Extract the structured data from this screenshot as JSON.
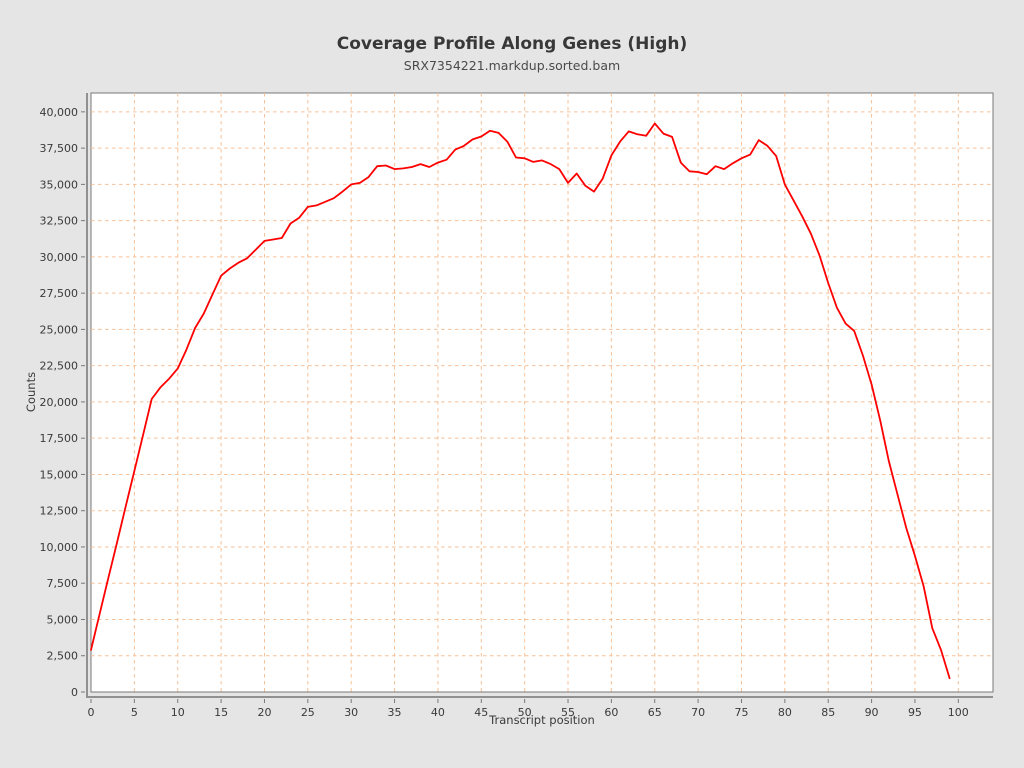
{
  "title": "Coverage Profile Along Genes (High)",
  "subtitle": "SRX7354221.markdup.sorted.bam",
  "chart_data": {
    "type": "line",
    "title": "Coverage Profile Along Genes (High)",
    "subtitle": "SRX7354221.markdup.sorted.bam",
    "xlabel": "Transcript position",
    "ylabel": "Counts",
    "xlim": [
      0,
      104
    ],
    "ylim": [
      0,
      41300
    ],
    "x_ticks": [
      0,
      5,
      10,
      15,
      20,
      25,
      30,
      35,
      40,
      45,
      50,
      55,
      60,
      65,
      70,
      75,
      80,
      85,
      90,
      95,
      100
    ],
    "y_ticks": [
      0,
      2500,
      5000,
      7500,
      10000,
      12500,
      15000,
      17500,
      20000,
      22500,
      25000,
      27500,
      30000,
      32500,
      35000,
      37500,
      40000
    ],
    "grid": true,
    "legend": "none",
    "series": [
      {
        "name": "SRX7354221.markdup.sorted.bam",
        "x": [
          0,
          1,
          2,
          3,
          4,
          5,
          6,
          7,
          8,
          9,
          10,
          11,
          12,
          13,
          14,
          15,
          16,
          17,
          18,
          19,
          20,
          21,
          22,
          23,
          24,
          25,
          26,
          27,
          28,
          29,
          30,
          31,
          32,
          33,
          34,
          35,
          36,
          37,
          38,
          39,
          40,
          41,
          42,
          43,
          44,
          45,
          46,
          47,
          48,
          49,
          50,
          51,
          52,
          53,
          54,
          55,
          56,
          57,
          58,
          59,
          60,
          61,
          62,
          63,
          64,
          65,
          66,
          67,
          68,
          69,
          70,
          71,
          72,
          73,
          74,
          75,
          76,
          77,
          78,
          79,
          80,
          81,
          82,
          83,
          84,
          85,
          86,
          87,
          88,
          89,
          90,
          91,
          92,
          93,
          94,
          95,
          96,
          97,
          98,
          99
        ],
        "values": [
          2900,
          5400,
          7850,
          10300,
          12800,
          15250,
          17700,
          20200,
          21000,
          21600,
          22300,
          23600,
          25100,
          26100,
          27400,
          28700,
          29200,
          29600,
          29900,
          30500,
          31100,
          31200,
          31300,
          32300,
          32700,
          33450,
          33550,
          33800,
          34050,
          34500,
          35000,
          35100,
          35500,
          36250,
          36300,
          36050,
          36100,
          36200,
          36400,
          36200,
          36500,
          36700,
          37400,
          37650,
          38100,
          38300,
          38700,
          38550,
          37950,
          36850,
          36800,
          36550,
          36650,
          36400,
          36050,
          35100,
          35750,
          34900,
          34500,
          35400,
          37000,
          37950,
          38650,
          38450,
          38350,
          39200,
          38500,
          38270,
          36500,
          35900,
          35850,
          35700,
          36250,
          36050,
          36450,
          36800,
          37050,
          38050,
          37650,
          36950,
          35000,
          33900,
          32800,
          31600,
          30100,
          28200,
          26500,
          25400,
          24900,
          23200,
          21200,
          18700,
          15900,
          13600,
          11300,
          9400,
          7300,
          4400,
          2900,
          950
        ]
      }
    ],
    "colors": {
      "background": "#e5e5e5",
      "plot_background": "#ffffff",
      "grid": "#f6c096",
      "border": "#787878",
      "axis": "#909090",
      "tick": "#777777",
      "line": "#fe0000",
      "text": "#3a3a3a"
    }
  }
}
